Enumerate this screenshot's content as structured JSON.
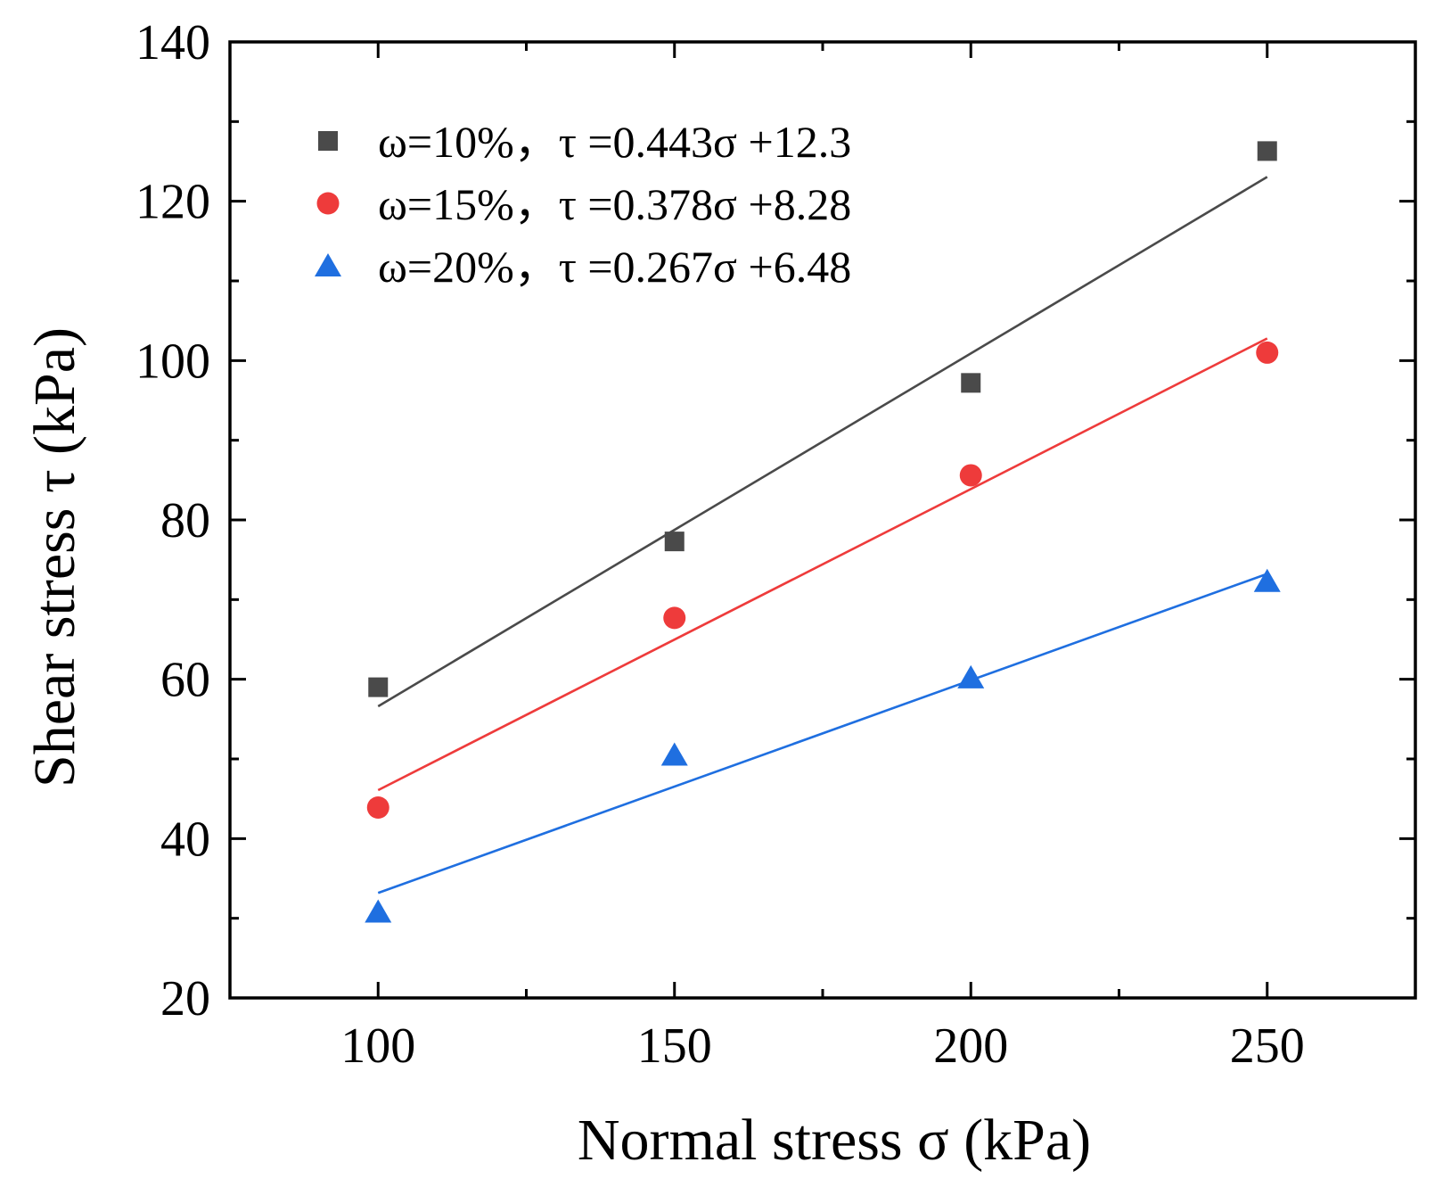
{
  "chart_data": {
    "type": "scatter",
    "xlabel": "Normal stress σ (kPa)",
    "ylabel": "Shear stress τ (kPa)",
    "xlim": [
      75,
      275
    ],
    "ylim": [
      20,
      140
    ],
    "x_ticks": [
      100,
      150,
      200,
      250
    ],
    "x_minor_ticks": [
      125,
      175,
      225
    ],
    "y_ticks": [
      20,
      40,
      60,
      80,
      100,
      120,
      140
    ],
    "y_minor_ticks": [
      30,
      50,
      70,
      90,
      110,
      130
    ],
    "legend_position": "top-left",
    "grid": false,
    "series": [
      {
        "name": "ω=10%，τ =0.443σ +12.3",
        "marker": "square",
        "color": "#4a4a4a",
        "x": [
          100,
          150,
          200,
          250
        ],
        "y": [
          59.0,
          77.3,
          97.2,
          126.3
        ],
        "fit": {
          "slope": 0.443,
          "intercept": 12.3
        }
      },
      {
        "name": "ω=15%，τ =0.378σ +8.28",
        "marker": "circle",
        "color": "#ee3b3b",
        "x": [
          100,
          150,
          200,
          250
        ],
        "y": [
          43.9,
          67.7,
          85.6,
          101.0
        ],
        "fit": {
          "slope": 0.378,
          "intercept": 8.28
        }
      },
      {
        "name": "ω=20%，τ =0.267σ +6.48",
        "marker": "triangle",
        "color": "#1f6fe0",
        "x": [
          100,
          150,
          200,
          250
        ],
        "y": [
          30.8,
          50.5,
          60.2,
          72.3
        ],
        "fit": {
          "slope": 0.267,
          "intercept": 6.48
        }
      }
    ]
  }
}
